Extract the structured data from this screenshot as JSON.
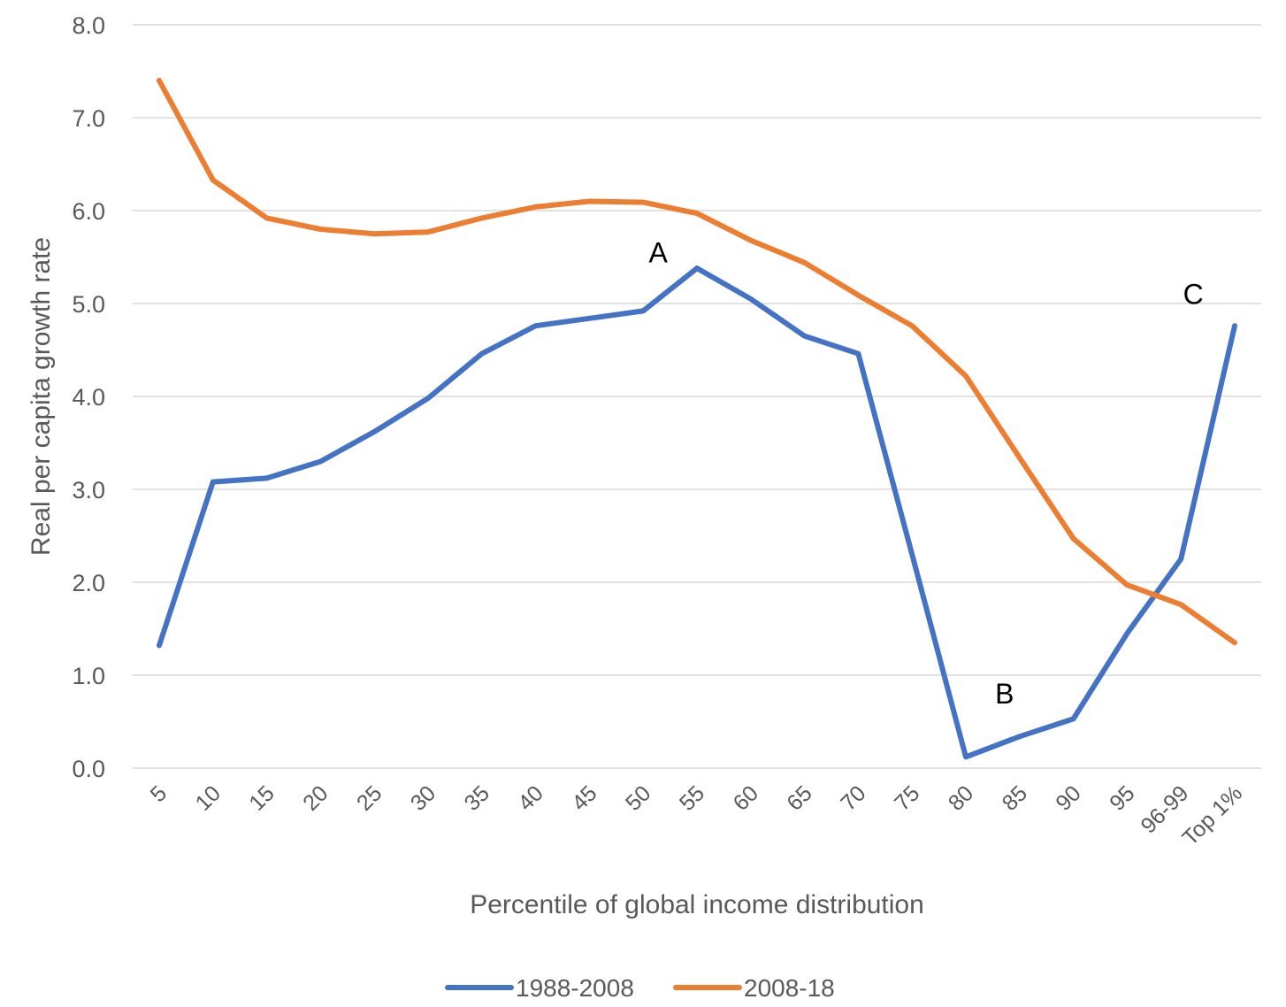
{
  "chart_data": {
    "type": "line",
    "title": "",
    "xlabel": "Percentile of global income distribution",
    "ylabel": "Real per capita growth rate",
    "ylim": [
      0,
      8
    ],
    "yticks": [
      "0.0",
      "1.0",
      "2.0",
      "3.0",
      "4.0",
      "5.0",
      "6.0",
      "7.0",
      "8.0"
    ],
    "categories": [
      "5",
      "10",
      "15",
      "20",
      "25",
      "30",
      "35",
      "40",
      "45",
      "50",
      "55",
      "60",
      "65",
      "70",
      "75",
      "80",
      "85",
      "90",
      "95",
      "96-99",
      "Top 1%"
    ],
    "grid": true,
    "legend": "bottom",
    "series": [
      {
        "name": "1988-2008",
        "color": "#4472c4",
        "values": [
          1.32,
          3.08,
          3.12,
          3.3,
          3.62,
          3.98,
          4.46,
          4.76,
          4.84,
          4.92,
          5.38,
          5.05,
          4.65,
          4.46,
          2.3,
          0.12,
          0.34,
          0.53,
          1.45,
          2.25,
          4.76
        ]
      },
      {
        "name": "2008-18",
        "color": "#ed7d31",
        "values": [
          7.4,
          6.33,
          5.92,
          5.8,
          5.75,
          5.77,
          5.92,
          6.04,
          6.1,
          6.09,
          5.97,
          5.68,
          5.44,
          5.09,
          4.76,
          4.22,
          3.34,
          2.47,
          1.97,
          1.76,
          1.35
        ]
      }
    ],
    "annotations": [
      {
        "label": "A",
        "x": "50",
        "y": 5.55
      },
      {
        "label": "B",
        "x": "85",
        "y": 0.8
      },
      {
        "label": "C",
        "x": "96-99",
        "y": 5.1
      }
    ]
  }
}
